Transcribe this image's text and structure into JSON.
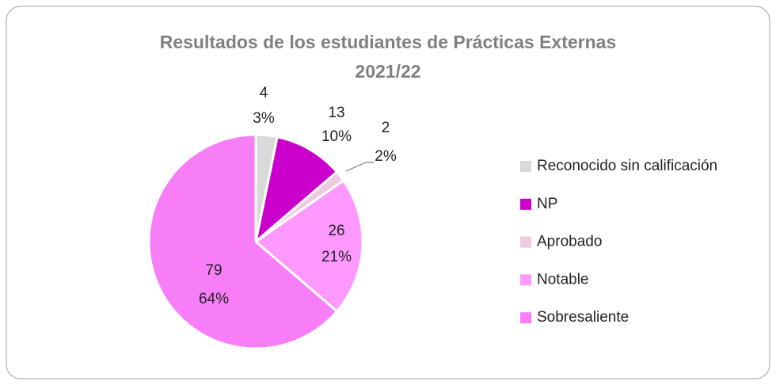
{
  "chart_data": {
    "type": "pie",
    "title": [
      "Resultados de los estudiantes de Prácticas Externas",
      "2021/22"
    ],
    "categories": [
      "Reconocido sin calificación",
      "NP",
      "Aprobado",
      "Notable",
      "Sobresaliente"
    ],
    "values": [
      4,
      13,
      2,
      26,
      79
    ],
    "percent_labels": [
      "3%",
      "10%",
      "2%",
      "21%",
      "64%"
    ],
    "colors": [
      "#d9d9d9",
      "#cc00cc",
      "#f0c8df",
      "#ff99ff",
      "#f77ef7"
    ],
    "legend": "right"
  }
}
